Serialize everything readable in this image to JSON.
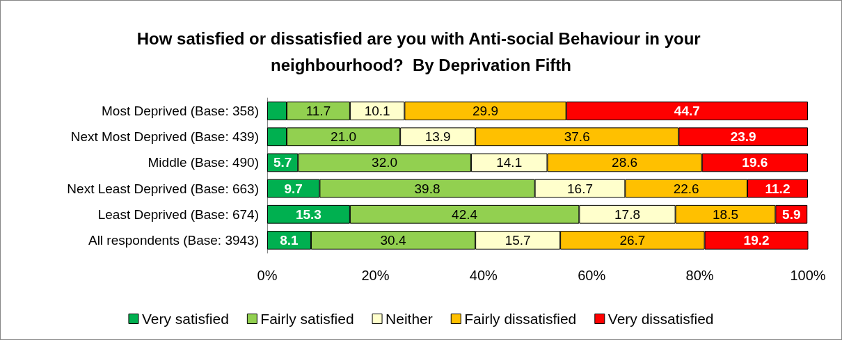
{
  "chart_data": {
    "type": "bar",
    "orientation": "horizontal",
    "stacked": true,
    "title": "How satisfied or dissatisfied are you with Anti-social Behaviour in your neighbourhood?  By Deprivation Fifth",
    "categories": [
      "Most Deprived (Base: 358)",
      "Next Most Deprived (Base: 439)",
      "Middle (Base: 490)",
      "Next Least Deprived (Base: 663)",
      "Least Deprived (Base: 674)",
      "All respondents (Base: 3943)"
    ],
    "series": [
      {
        "name": "Very satisfied",
        "color": "#00b050",
        "values": [
          3.6,
          3.6,
          5.7,
          9.7,
          15.3,
          8.1
        ],
        "value_labels": [
          null,
          null,
          "5.7",
          "9.7",
          "15.3",
          "8.1"
        ]
      },
      {
        "name": "Fairly satisfied",
        "color": "#92d050",
        "values": [
          11.7,
          21.0,
          32.0,
          39.8,
          42.4,
          30.4
        ],
        "value_labels": [
          "11.7",
          "21.0",
          "32.0",
          "39.8",
          "42.4",
          "30.4"
        ]
      },
      {
        "name": "Neither",
        "color": "#ffffcc",
        "values": [
          10.1,
          13.9,
          14.1,
          16.7,
          17.8,
          15.7
        ],
        "value_labels": [
          "10.1",
          "13.9",
          "14.1",
          "16.7",
          "17.8",
          "15.7"
        ]
      },
      {
        "name": "Fairly dissatisfied",
        "color": "#ffc000",
        "values": [
          29.9,
          37.6,
          28.6,
          22.6,
          18.5,
          26.7
        ],
        "value_labels": [
          "29.9",
          "37.6",
          "28.6",
          "22.6",
          "18.5",
          "26.7"
        ]
      },
      {
        "name": "Very dissatisfied",
        "color": "#ff0000",
        "values": [
          44.7,
          23.9,
          19.6,
          11.2,
          5.9,
          19.2
        ],
        "value_labels": [
          "44.7",
          "23.9",
          "19.6",
          "11.2",
          "5.9",
          "19.2"
        ]
      }
    ],
    "xlim": [
      0,
      100
    ],
    "xticks": [
      {
        "value": 0,
        "label": "0%"
      },
      {
        "value": 20,
        "label": "20%"
      },
      {
        "value": 40,
        "label": "40%"
      },
      {
        "value": 60,
        "label": "60%"
      },
      {
        "value": 80,
        "label": "80%"
      },
      {
        "value": 100,
        "label": "100%"
      }
    ],
    "grid": false,
    "legend": "bottom"
  }
}
